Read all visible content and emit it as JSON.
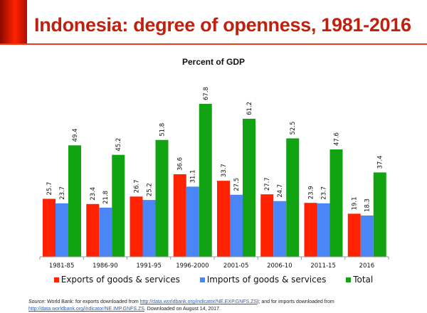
{
  "title": "Indonesia: degree of openness, 1981-2016",
  "chart_data": {
    "type": "bar",
    "title": "Percent of GDP",
    "categories": [
      "1981-85",
      "1986-90",
      "1991-95",
      "1996-2000",
      "2001-05",
      "2006-10",
      "2011-15",
      "2016"
    ],
    "series": [
      {
        "name": "Exports of goods & services",
        "color": "#ff2200",
        "values": [
          25.7,
          23.4,
          26.7,
          36.6,
          33.7,
          27.7,
          23.9,
          19.1
        ]
      },
      {
        "name": "Imports of goods & services",
        "color": "#4a86f5",
        "values": [
          23.7,
          21.8,
          25.2,
          31.1,
          27.5,
          24.7,
          23.7,
          18.3
        ]
      },
      {
        "name": "Total",
        "color": "#12a312",
        "values": [
          49.4,
          45.2,
          51.8,
          67.8,
          61.2,
          52.5,
          47.6,
          37.4
        ]
      }
    ],
    "ylim": [
      0,
      68
    ],
    "grid": false,
    "legend": "bottom"
  },
  "source": {
    "label": "Source:",
    "text1": " World Bank: for exports downloaded from ",
    "link1": "http://data.worldbank.org/indicator/NE.EXP.GNFS.ZS",
    "text2": "); and for imports downloaded from",
    "link2": "http://data.worldbank.org/indicator/NE.IMP.GNFS.ZS",
    "text3": ". Downloaded on August 14, 2017."
  }
}
